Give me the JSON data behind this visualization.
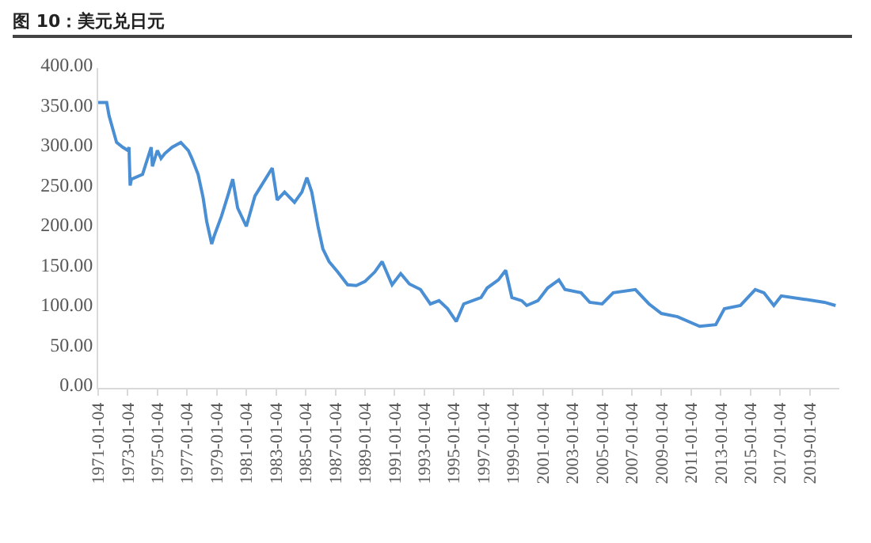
{
  "chart_data": {
    "type": "line",
    "title": "图 10：美元兑日元",
    "x": [
      "1971-01-04",
      "1971-08",
      "1971-10",
      "1972-04",
      "1972-09",
      "1973-01",
      "1973-02",
      "1973-03",
      "1973-04",
      "1974-01",
      "1974-08",
      "1974-09",
      "1975-01",
      "1975-04",
      "1975-07",
      "1976-01",
      "1976-08",
      "1977-02",
      "1977-05",
      "1977-10",
      "1978-02",
      "1978-05",
      "1978-09",
      "1978-11",
      "1979-05",
      "1979-10",
      "1980-02",
      "1980-06",
      "1981-01",
      "1981-08",
      "1982-10",
      "1983-02",
      "1983-08",
      "1984-04",
      "1984-10",
      "1985-02",
      "1985-06",
      "1985-11",
      "1986-03",
      "1986-08",
      "1987-03",
      "1987-11",
      "1988-06",
      "1989-01",
      "1989-09",
      "1990-03",
      "1990-11",
      "1991-06",
      "1992-01",
      "1992-10",
      "1993-06",
      "1994-01",
      "1994-08",
      "1995-03",
      "1995-09",
      "1996-11",
      "1997-04",
      "1998-01",
      "1998-07",
      "1998-12",
      "1999-08",
      "1999-12",
      "2000-09",
      "2001-05",
      "2002-02",
      "2002-07",
      "2003-08",
      "2004-03",
      "2005-01",
      "2005-10",
      "2007-04",
      "2008-03",
      "2009-01",
      "2010-02",
      "2011-08",
      "2012-09",
      "2013-04",
      "2014-05",
      "2015-05",
      "2015-12",
      "2016-08",
      "2017-02",
      "2018-08",
      "2020-01",
      "2020-10"
    ],
    "series": [
      {
        "color": "#4a8fd4",
        "values": [
          357,
          357,
          340,
          307,
          301,
          297,
          301,
          253,
          261,
          267,
          301,
          277,
          297,
          287,
          293,
          301,
          307,
          297,
          287,
          267,
          238,
          208,
          180,
          190,
          215,
          240,
          261,
          225,
          202,
          240,
          275,
          235,
          245,
          232,
          245,
          263,
          245,
          202,
          174,
          158,
          145,
          129,
          128,
          133,
          145,
          158,
          129,
          143,
          130,
          123,
          105,
          109,
          99,
          83,
          105,
          113,
          125,
          135,
          147,
          113,
          109,
          103,
          109,
          125,
          135,
          123,
          119,
          107,
          105,
          119,
          123,
          105,
          93,
          89,
          77,
          79,
          99,
          103,
          123,
          119,
          103,
          115,
          111,
          107,
          103
        ]
      }
    ],
    "xlim": [
      "1971-01-04",
      "2021-01-01"
    ],
    "xticks": [
      {
        "value": "1971-01-04",
        "label": "1971-01-04"
      },
      {
        "value": "1973-01-04",
        "label": "1973-01-04"
      },
      {
        "value": "1975-01-04",
        "label": "1975-01-04"
      },
      {
        "value": "1977-01-04",
        "label": "1977-01-04"
      },
      {
        "value": "1979-01-04",
        "label": "1979-01-04"
      },
      {
        "value": "1981-01-04",
        "label": "1981-01-04"
      },
      {
        "value": "1983-01-04",
        "label": "1983-01-04"
      },
      {
        "value": "1985-01-04",
        "label": "1985-01-04"
      },
      {
        "value": "1987-01-04",
        "label": "1987-01-04"
      },
      {
        "value": "1989-01-04",
        "label": "1989-01-04"
      },
      {
        "value": "1991-01-04",
        "label": "1991-01-04"
      },
      {
        "value": "1993-01-04",
        "label": "1993-01-04"
      },
      {
        "value": "1995-01-04",
        "label": "1995-01-04"
      },
      {
        "value": "1997-01-04",
        "label": "1997-01-04"
      },
      {
        "value": "1999-01-04",
        "label": "1999-01-04"
      },
      {
        "value": "2001-01-04",
        "label": "2001-01-04"
      },
      {
        "value": "2003-01-04",
        "label": "2003-01-04"
      },
      {
        "value": "2005-01-04",
        "label": "2005-01-04"
      },
      {
        "value": "2007-01-04",
        "label": "2007-01-04"
      },
      {
        "value": "2009-01-04",
        "label": "2009-01-04"
      },
      {
        "value": "2011-01-04",
        "label": "2011-01-04"
      },
      {
        "value": "2013-01-04",
        "label": "2013-01-04"
      },
      {
        "value": "2015-01-04",
        "label": "2015-01-04"
      },
      {
        "value": "2017-01-04",
        "label": "2017-01-04"
      },
      {
        "value": "2019-01-04",
        "label": "2019-01-04"
      }
    ],
    "ylim": [
      0,
      400
    ],
    "yticks": [
      {
        "value": 0,
        "label": "0.00"
      },
      {
        "value": 50,
        "label": "50.00"
      },
      {
        "value": 100,
        "label": "100.00"
      },
      {
        "value": 150,
        "label": "150.00"
      },
      {
        "value": 200,
        "label": "200.00"
      },
      {
        "value": 250,
        "label": "250.00"
      },
      {
        "value": 300,
        "label": "300.00"
      },
      {
        "value": 350,
        "label": "350.00"
      },
      {
        "value": 400,
        "label": "400.00"
      }
    ],
    "grid": false,
    "marker": "none",
    "line_style": "solid"
  }
}
